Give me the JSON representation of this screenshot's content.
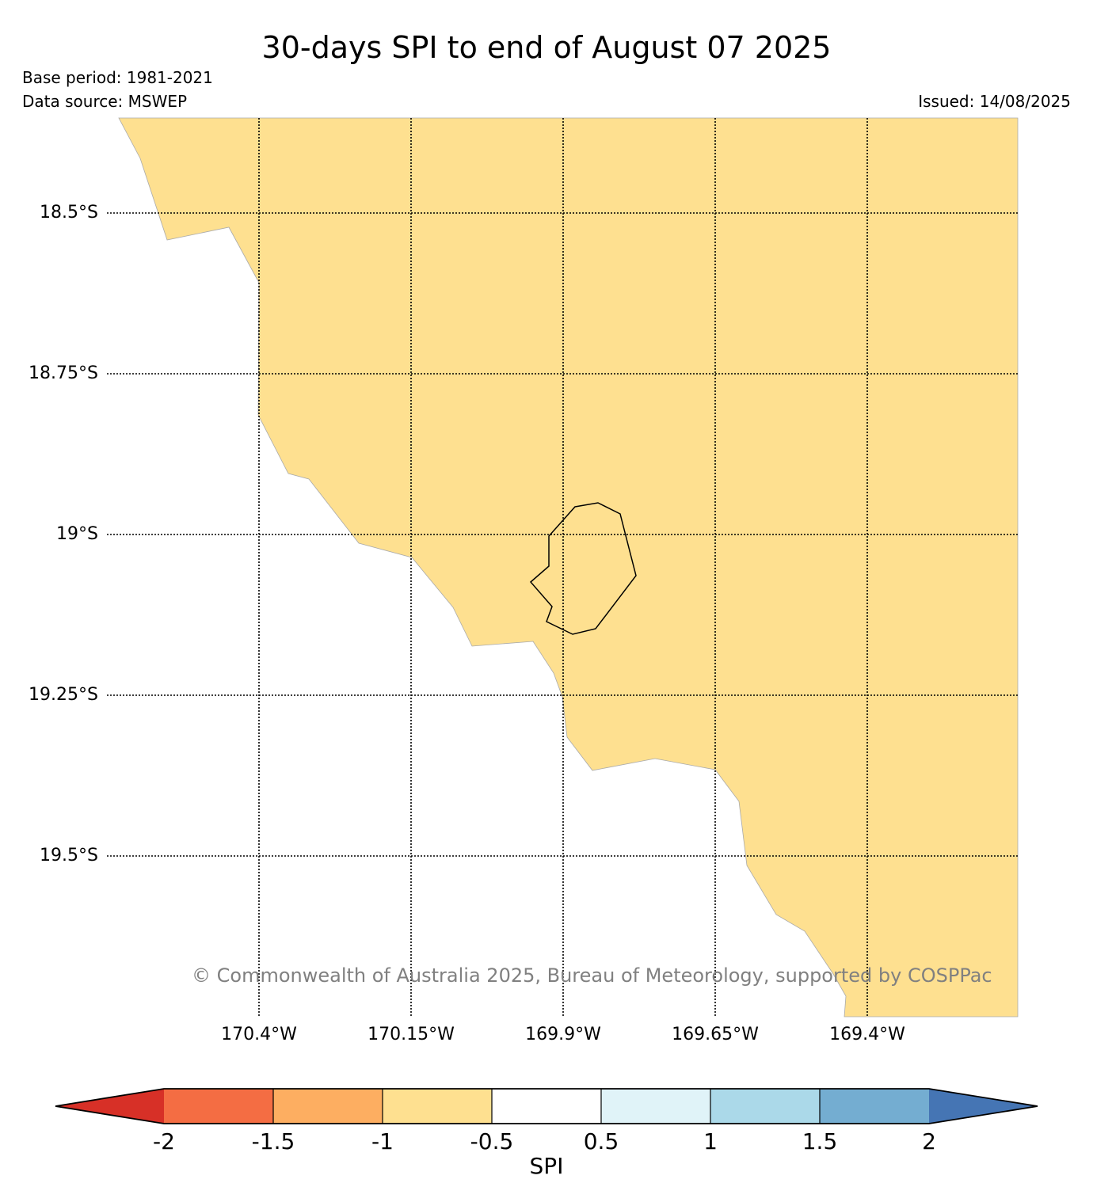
{
  "header": {
    "title": "30-days SPI to end of August 07 2025",
    "base_period": "Base period: 1981-2021",
    "data_source": "Data source: MSWEP",
    "issued": "Issued: 14/08/2025"
  },
  "map": {
    "latitude_labels": [
      "18.5°S",
      "18.75°S",
      "19°S",
      "19.25°S",
      "19.5°S"
    ],
    "longitude_labels": [
      "170.4°W",
      "170.15°W",
      "169.9°W",
      "169.65°W",
      "169.4°W"
    ],
    "spi_fill_color": "#fee090",
    "copyright": "© Commonwealth of Australia 2025, Bureau of Meteorology, supported by COSPPac"
  },
  "colorbar": {
    "label": "SPI",
    "ticks": [
      "-2",
      "-1.5",
      "-1",
      "-0.5",
      "0.5",
      "1",
      "1.5",
      "2"
    ],
    "colors": [
      "#d73027",
      "#f46d43",
      "#fdae61",
      "#fee090",
      "#ffffff",
      "#e0f3f8",
      "#abd9e9",
      "#74add1",
      "#4575b4"
    ]
  }
}
